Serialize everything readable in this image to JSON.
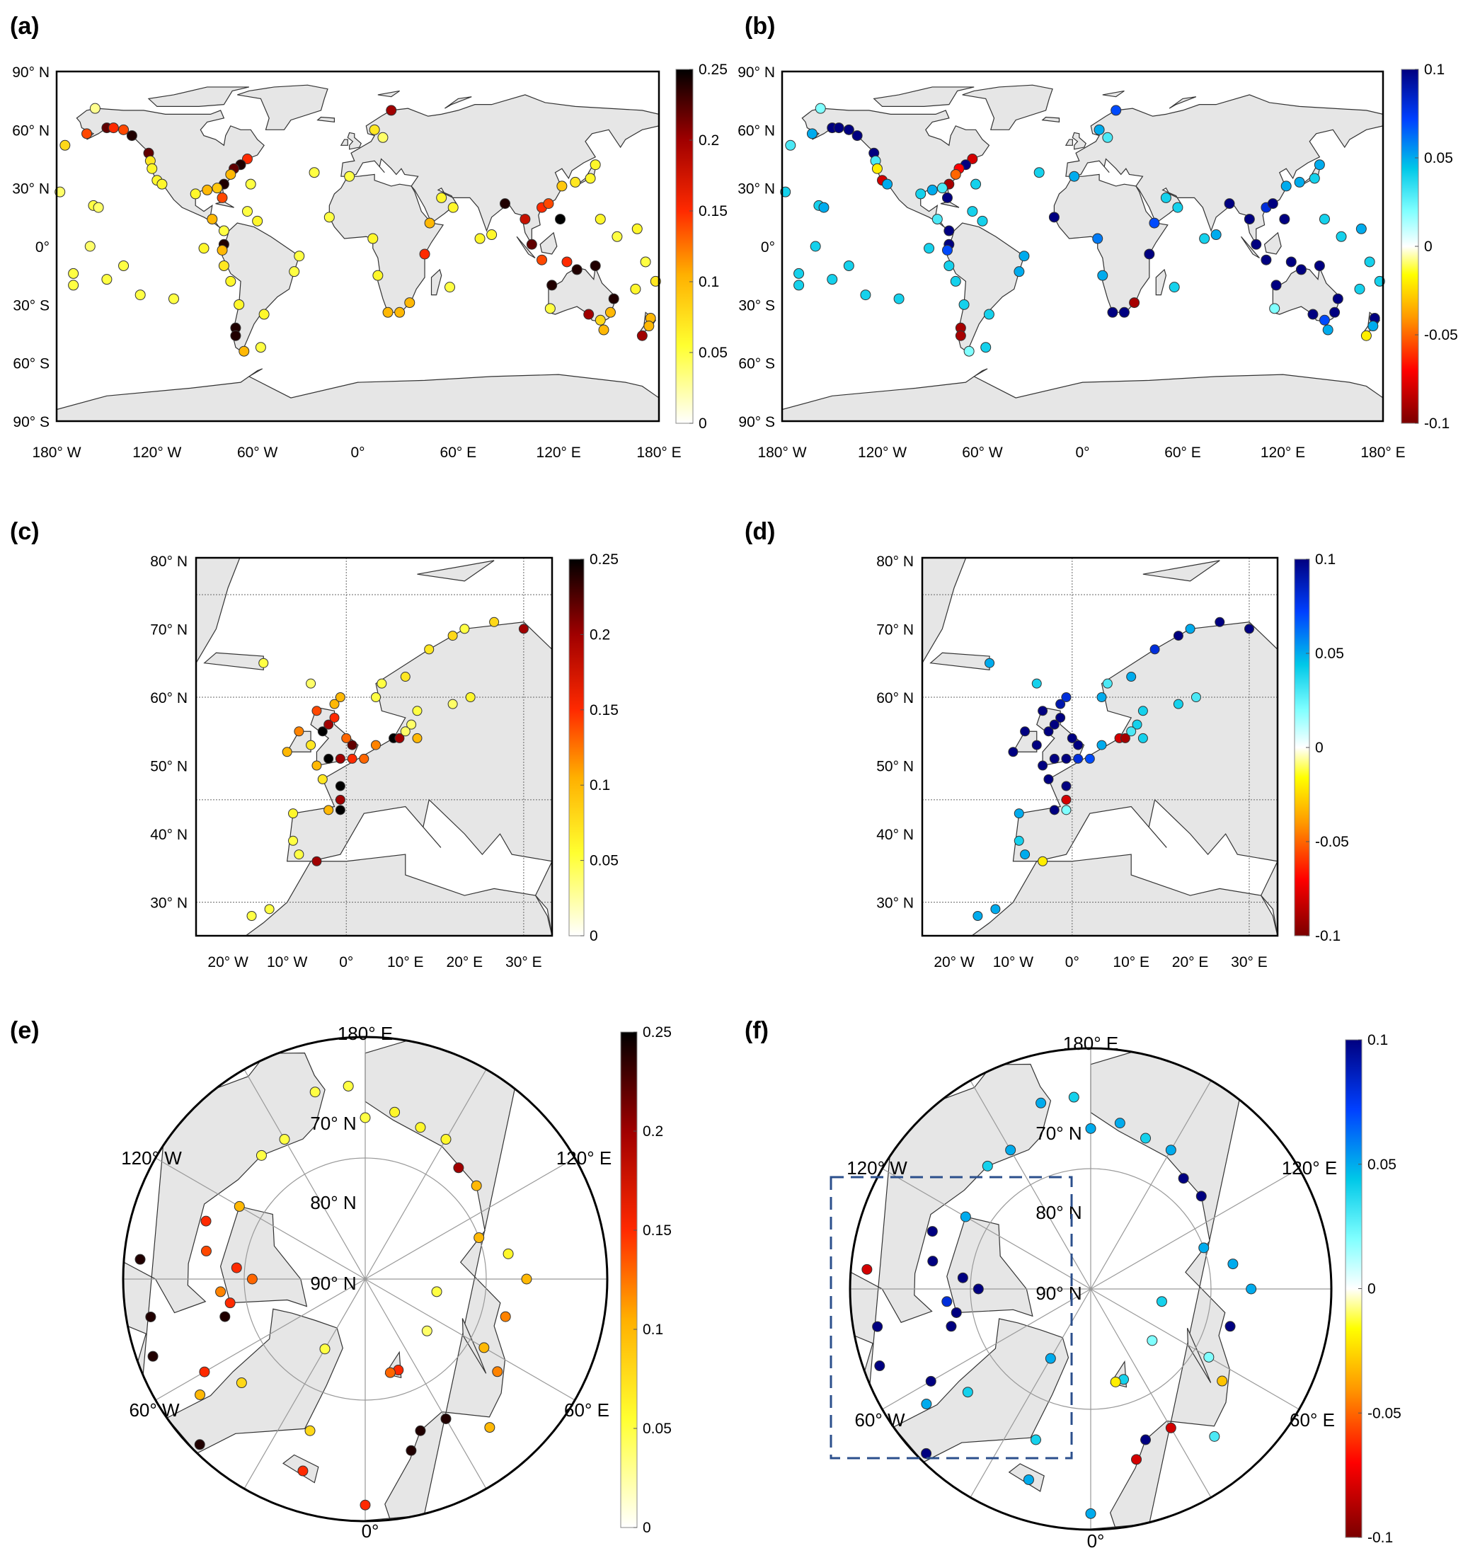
{
  "panels": [
    {
      "id": "a",
      "label": "(a)",
      "lat_ticks": [
        "90° N",
        "60° N",
        "30° N",
        "0°",
        "30° S",
        "60° S",
        "90° S"
      ],
      "lon_ticks": [
        "180° W",
        "120° W",
        "60° W",
        "0°",
        "60° E",
        "120° E",
        "180° E"
      ],
      "colorbar": {
        "min": 0,
        "max": 0.25,
        "ticks": [
          "0",
          "0.05",
          "0.1",
          "0.15",
          "0.2",
          "0.25"
        ],
        "cmap": "hot"
      }
    },
    {
      "id": "b",
      "label": "(b)",
      "lat_ticks": [
        "90° N",
        "60° N",
        "30° N",
        "0°",
        "30° S",
        "60° S",
        "90° S"
      ],
      "lon_ticks": [
        "180° W",
        "120° W",
        "60° W",
        "0°",
        "60° E",
        "120° E",
        "180° E"
      ],
      "colorbar": {
        "min": -0.1,
        "max": 0.1,
        "ticks": [
          "-0.1",
          "-0.05",
          "0",
          "0.05",
          "0.1"
        ],
        "cmap": "diverging"
      }
    },
    {
      "id": "c",
      "label": "(c)",
      "lat_ticks": [
        "80° N",
        "70° N",
        "60° N",
        "50° N",
        "40° N",
        "30° N"
      ],
      "lon_ticks": [
        "20° W",
        "10° W",
        "0°",
        "10° E",
        "20° E",
        "30° E"
      ],
      "colorbar": {
        "min": 0,
        "max": 0.25,
        "ticks": [
          "0",
          "0.05",
          "0.1",
          "0.15",
          "0.2",
          "0.25"
        ],
        "cmap": "hot"
      }
    },
    {
      "id": "d",
      "label": "(d)",
      "lat_ticks": [
        "80° N",
        "70° N",
        "60° N",
        "50° N",
        "40° N",
        "30° N"
      ],
      "lon_ticks": [
        "20° W",
        "10° W",
        "0°",
        "10° E",
        "20° E",
        "30° E"
      ],
      "colorbar": {
        "min": -0.1,
        "max": 0.1,
        "ticks": [
          "-0.1",
          "-0.05",
          "0",
          "0.05",
          "0.1"
        ],
        "cmap": "diverging"
      }
    },
    {
      "id": "e",
      "label": "(e)",
      "polar_labels": [
        "180° E",
        "70° N",
        "80° N",
        "90° N",
        "120° W",
        "120° E",
        "60° W",
        "60° E",
        "0°"
      ],
      "colorbar": {
        "min": 0,
        "max": 0.25,
        "ticks": [
          "0",
          "0.05",
          "0.1",
          "0.15",
          "0.2",
          "0.25"
        ],
        "cmap": "hot"
      }
    },
    {
      "id": "f",
      "label": "(f)",
      "polar_labels": [
        "180° E",
        "70° N",
        "80° N",
        "90° N",
        "120° W",
        "120° E",
        "60° W",
        "60° E",
        "0°"
      ],
      "colorbar": {
        "min": -0.1,
        "max": 0.1,
        "ticks": [
          "-0.1",
          "-0.05",
          "0",
          "0.05",
          "0.1"
        ],
        "cmap": "diverging"
      },
      "highlight_box": true
    }
  ],
  "colors": {
    "land": "#e6e6e6",
    "coast": "#333333",
    "box": "#2b4f8c",
    "grid": "#999999"
  },
  "chart_data": [
    {
      "type": "scatter",
      "panels": [
        "a",
        "b"
      ],
      "region": "global",
      "xlim": [
        -180,
        180
      ],
      "ylim": [
        -90,
        90
      ],
      "fields": [
        "lon",
        "lat",
        "a",
        "b"
      ],
      "points": [
        [
          -175,
          52,
          0.08,
          0.03
        ],
        [
          -162,
          58,
          0.14,
          0.05
        ],
        [
          -150,
          61,
          0.22,
          0.1
        ],
        [
          -146,
          61,
          0.15,
          0.1
        ],
        [
          -140,
          60,
          0.14,
          0.1
        ],
        [
          -135,
          57,
          0.24,
          0.1
        ],
        [
          -125,
          48,
          0.22,
          0.1
        ],
        [
          -124,
          44,
          0.07,
          0.03
        ],
        [
          -123,
          40,
          0.06,
          -0.02
        ],
        [
          -120,
          34,
          0.06,
          -0.08
        ],
        [
          -117,
          32,
          0.06,
          0.05
        ],
        [
          -158,
          21,
          0.05,
          0.04
        ],
        [
          -155,
          20,
          0.04,
          0.05
        ],
        [
          -157,
          71,
          0.03,
          0.02
        ],
        [
          -178,
          28,
          0.04,
          0.04
        ],
        [
          -66,
          45,
          0.15,
          -0.08
        ],
        [
          -70,
          42,
          0.24,
          0.1
        ],
        [
          -74,
          40,
          0.22,
          -0.07
        ],
        [
          -76,
          37,
          0.1,
          -0.05
        ],
        [
          -80,
          32,
          0.24,
          -0.09
        ],
        [
          -81,
          25,
          0.14,
          0.1
        ],
        [
          -90,
          29,
          0.1,
          0.05
        ],
        [
          -97,
          27,
          0.06,
          0.04
        ],
        [
          -84,
          30,
          0.09,
          0.03
        ],
        [
          -64,
          32,
          0.05,
          0.04
        ],
        [
          -66,
          18,
          0.05,
          0.04
        ],
        [
          -60,
          13,
          0.06,
          0.04
        ],
        [
          -87,
          14,
          0.1,
          0.03
        ],
        [
          -80,
          8,
          0.05,
          0.1
        ],
        [
          -80,
          1,
          0.24,
          0.1
        ],
        [
          -81,
          -2,
          0.1,
          0.07
        ],
        [
          -92,
          -1,
          0.06,
          0.04
        ],
        [
          -80,
          -10,
          0.07,
          0.04
        ],
        [
          -76,
          -18,
          0.06,
          0.04
        ],
        [
          -71,
          -30,
          0.06,
          0.04
        ],
        [
          -73,
          -42,
          0.24,
          -0.09
        ],
        [
          -73,
          -46,
          0.24,
          -0.09
        ],
        [
          -68,
          -54,
          0.1,
          0.02
        ],
        [
          -58,
          -52,
          0.05,
          0.04
        ],
        [
          -56,
          -35,
          0.06,
          0.04
        ],
        [
          -38,
          -13,
          0.05,
          0.05
        ],
        [
          -35,
          -5,
          0.05,
          0.05
        ],
        [
          -26,
          38,
          0.05,
          0.04
        ],
        [
          -17,
          15,
          0.05,
          0.1
        ],
        [
          -160,
          0,
          0.04,
          0.04
        ],
        [
          -140,
          -10,
          0.05,
          0.04
        ],
        [
          -150,
          -17,
          0.05,
          0.04
        ],
        [
          -170,
          -14,
          0.05,
          0.04
        ],
        [
          -130,
          -25,
          0.05,
          0.04
        ],
        [
          -110,
          -27,
          0.05,
          0.04
        ],
        [
          -170,
          -20,
          0.05,
          0.04
        ],
        [
          20,
          70,
          0.2,
          0.07
        ],
        [
          10,
          60,
          0.07,
          0.05
        ],
        [
          15,
          56,
          0.04,
          0.03
        ],
        [
          -5,
          36,
          0.05,
          0.05
        ],
        [
          18,
          -34,
          0.1,
          0.1
        ],
        [
          25,
          -34,
          0.1,
          0.1
        ],
        [
          31,
          -29,
          0.1,
          -0.09
        ],
        [
          40,
          -4,
          0.15,
          0.1
        ],
        [
          43,
          12,
          0.1,
          0.07
        ],
        [
          50,
          25,
          0.06,
          0.04
        ],
        [
          57,
          20,
          0.06,
          0.04
        ],
        [
          9,
          4,
          0.06,
          0.06
        ],
        [
          12,
          -15,
          0.06,
          0.05
        ],
        [
          55,
          -21,
          0.05,
          0.04
        ],
        [
          73,
          4,
          0.06,
          0.04
        ],
        [
          80,
          6,
          0.06,
          0.05
        ],
        [
          88,
          22,
          0.24,
          0.1
        ],
        [
          100,
          14,
          0.18,
          0.1
        ],
        [
          104,
          1,
          0.22,
          0.1
        ],
        [
          110,
          20,
          0.15,
          0.08
        ],
        [
          114,
          22,
          0.14,
          0.1
        ],
        [
          121,
          14,
          0.25,
          0.1
        ],
        [
          122,
          31,
          0.09,
          0.05
        ],
        [
          130,
          33,
          0.07,
          0.05
        ],
        [
          139,
          35,
          0.06,
          0.04
        ],
        [
          142,
          42,
          0.06,
          0.05
        ],
        [
          145,
          14,
          0.06,
          0.04
        ],
        [
          110,
          -7,
          0.14,
          0.1
        ],
        [
          125,
          -8,
          0.15,
          0.1
        ],
        [
          155,
          5,
          0.05,
          0.04
        ],
        [
          167,
          9,
          0.06,
          0.05
        ],
        [
          172,
          -8,
          0.05,
          0.04
        ],
        [
          116,
          -20,
          0.24,
          0.1
        ],
        [
          131,
          -12,
          0.24,
          0.1
        ],
        [
          142,
          -10,
          0.24,
          0.1
        ],
        [
          153,
          -27,
          0.24,
          0.1
        ],
        [
          151,
          -34,
          0.1,
          0.1
        ],
        [
          145,
          -38,
          0.08,
          0.07
        ],
        [
          138,
          -35,
          0.2,
          0.1
        ],
        [
          115,
          -32,
          0.05,
          0.02
        ],
        [
          147,
          -43,
          0.1,
          0.05
        ],
        [
          175,
          -37,
          0.1,
          0.1
        ],
        [
          174,
          -41,
          0.1,
          0.05
        ],
        [
          170,
          -46,
          0.2,
          -0.02
        ],
        [
          178,
          -18,
          0.07,
          0.04
        ],
        [
          166,
          -22,
          0.06,
          0.04
        ]
      ]
    },
    {
      "type": "scatter",
      "panels": [
        "c",
        "d"
      ],
      "region": "europe",
      "xlim": [
        -25,
        35
      ],
      "ylim": [
        25,
        80
      ],
      "fields": [
        "lon",
        "lat",
        "c",
        "d"
      ],
      "points": [
        [
          -4,
          48,
          0.07,
          0.1
        ],
        [
          -5,
          50,
          0.1,
          0.1
        ],
        [
          -3,
          51,
          0.25,
          0.1
        ],
        [
          -1,
          51,
          0.2,
          0.1
        ],
        [
          1,
          51,
          0.15,
          0.08
        ],
        [
          3,
          51,
          0.13,
          0.07
        ],
        [
          5,
          53,
          0.12,
          0.05
        ],
        [
          8,
          54,
          0.25,
          -0.08
        ],
        [
          9,
          54,
          0.2,
          -0.09
        ],
        [
          -6,
          53,
          0.07,
          0.1
        ],
        [
          -10,
          52,
          0.1,
          0.1
        ],
        [
          -8,
          55,
          0.12,
          0.1
        ],
        [
          -4,
          55,
          0.25,
          0.1
        ],
        [
          -3,
          56,
          0.2,
          0.1
        ],
        [
          -2,
          57,
          0.15,
          0.1
        ],
        [
          -5,
          58,
          0.14,
          0.1
        ],
        [
          -2,
          59,
          0.1,
          0.09
        ],
        [
          -1,
          60,
          0.1,
          0.08
        ],
        [
          1,
          53,
          0.22,
          0.1
        ],
        [
          0,
          54,
          0.13,
          0.1
        ],
        [
          -1,
          47,
          0.25,
          0.1
        ],
        [
          -1,
          45,
          0.2,
          -0.08
        ],
        [
          -1,
          43.5,
          0.25,
          0.02
        ],
        [
          -3,
          43.5,
          0.1,
          0.1
        ],
        [
          -9,
          43,
          0.06,
          0.05
        ],
        [
          -9,
          39,
          0.05,
          0.04
        ],
        [
          -8,
          37,
          0.05,
          0.05
        ],
        [
          -5,
          36,
          0.2,
          -0.02
        ],
        [
          -16,
          28,
          0.05,
          0.05
        ],
        [
          -13,
          29,
          0.05,
          0.05
        ],
        [
          5,
          60,
          0.05,
          0.05
        ],
        [
          6,
          62,
          0.05,
          0.03
        ],
        [
          10,
          63,
          0.07,
          0.05
        ],
        [
          14,
          67,
          0.07,
          0.08
        ],
        [
          18,
          69,
          0.08,
          0.1
        ],
        [
          25,
          71,
          0.08,
          0.1
        ],
        [
          30,
          70,
          0.2,
          0.1
        ],
        [
          20,
          70,
          0.05,
          0.05
        ],
        [
          12,
          58,
          0.05,
          0.04
        ],
        [
          11,
          56,
          0.04,
          0.04
        ],
        [
          18,
          59,
          0.04,
          0.04
        ],
        [
          21,
          60,
          0.06,
          0.03
        ],
        [
          12,
          54,
          0.1,
          0.04
        ],
        [
          10,
          55,
          0.04,
          0.03
        ],
        [
          -6,
          62,
          0.04,
          0.04
        ],
        [
          -14,
          65,
          0.05,
          0.05
        ]
      ]
    },
    {
      "type": "scatter",
      "panels": [
        "e",
        "f"
      ],
      "region": "arctic",
      "ylim": [
        60,
        90
      ],
      "fields": [
        "lon",
        "lat",
        "e",
        "f"
      ],
      "points": [
        [
          -110,
          69,
          0.15,
          0.1
        ],
        [
          -100,
          70,
          0.14,
          0.1
        ],
        [
          -95,
          74,
          0.15,
          0.1
        ],
        [
          -85,
          72,
          0.12,
          0.08
        ],
        [
          -80,
          73,
          0.15,
          0.1
        ],
        [
          -75,
          72,
          0.24,
          0.1
        ],
        [
          -90,
          76,
          0.13,
          0.1
        ],
        [
          -120,
          72,
          0.1,
          0.05
        ],
        [
          -140,
          70,
          0.05,
          0.04
        ],
        [
          -150,
          70,
          0.05,
          0.05
        ],
        [
          -165,
          66,
          0.05,
          0.05
        ],
        [
          -175,
          66,
          0.05,
          0.04
        ],
        [
          -60,
          67,
          0.15,
          0.1
        ],
        [
          -55,
          65,
          0.1,
          0.05
        ],
        [
          -50,
          70,
          0.08,
          0.04
        ],
        [
          -45,
          61,
          0.24,
          0.1
        ],
        [
          -70,
          62,
          0.24,
          0.1
        ],
        [
          -80,
          63,
          0.24,
          0.1
        ],
        [
          -95,
          62,
          0.24,
          -0.08
        ],
        [
          -20,
          70,
          0.08,
          0.04
        ],
        [
          -18,
          65,
          0.15,
          0.05
        ],
        [
          0,
          62,
          0.15,
          0.05
        ],
        [
          15,
          68,
          0.24,
          -0.08
        ],
        [
          20,
          70,
          0.24,
          0.1
        ],
        [
          30,
          70,
          0.24,
          -0.08
        ],
        [
          40,
          66,
          0.1,
          0.03
        ],
        [
          55,
          70,
          0.12,
          -0.03
        ],
        [
          60,
          73,
          0.1,
          0.02
        ],
        [
          75,
          72,
          0.12,
          0.1
        ],
        [
          90,
          70,
          0.1,
          0.05
        ],
        [
          100,
          72,
          0.06,
          0.05
        ],
        [
          110,
          75,
          0.1,
          0.05
        ],
        [
          130,
          72,
          0.1,
          0.1
        ],
        [
          140,
          72,
          0.2,
          0.1
        ],
        [
          150,
          70,
          0.06,
          0.05
        ],
        [
          160,
          70,
          0.06,
          0.04
        ],
        [
          180,
          70,
          0.05,
          0.05
        ],
        [
          170,
          69,
          0.06,
          0.05
        ],
        [
          20,
          78,
          0.15,
          0.04
        ],
        [
          15,
          78,
          0.13,
          -0.02
        ],
        [
          50,
          80,
          0.04,
          0.02
        ],
        [
          80,
          81,
          0.05,
          0.04
        ],
        [
          -30,
          80,
          0.05,
          0.05
        ]
      ]
    }
  ]
}
